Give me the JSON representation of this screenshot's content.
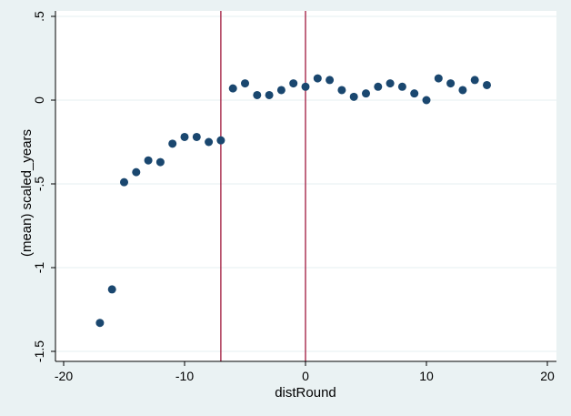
{
  "chart_data": {
    "type": "scatter",
    "xlabel": "distRound",
    "ylabel": "(mean) scaled_years",
    "xlim": [
      -20,
      20
    ],
    "ylim": [
      -1.5,
      0.5
    ],
    "xticks": [
      -20,
      -10,
      0,
      10,
      20
    ],
    "xtick_labels": [
      "-20",
      "-10",
      "0",
      "10",
      "20"
    ],
    "yticks": [
      0.5,
      0,
      -0.5,
      -1,
      -1.5
    ],
    "ytick_labels": [
      ".5",
      "0",
      "-.5",
      "-1",
      "-1.5"
    ],
    "grid": true,
    "vlines": [
      -7,
      0
    ],
    "colors": {
      "background": "#eaf2f3",
      "plot_area": "#ffffff",
      "grid": "#eaf2f3",
      "marker": "#1a476f",
      "vline": "#a0183d",
      "axis": "#000000"
    },
    "points": [
      {
        "x": -17,
        "y": -1.33
      },
      {
        "x": -16,
        "y": -1.13
      },
      {
        "x": -15,
        "y": -0.49
      },
      {
        "x": -14,
        "y": -0.43
      },
      {
        "x": -13,
        "y": -0.36
      },
      {
        "x": -12,
        "y": -0.37
      },
      {
        "x": -11,
        "y": -0.26
      },
      {
        "x": -10,
        "y": -0.22
      },
      {
        "x": -9,
        "y": -0.22
      },
      {
        "x": -8,
        "y": -0.25
      },
      {
        "x": -7,
        "y": -0.24
      },
      {
        "x": -6,
        "y": 0.07
      },
      {
        "x": -5,
        "y": 0.1
      },
      {
        "x": -4,
        "y": 0.03
      },
      {
        "x": -3,
        "y": 0.03
      },
      {
        "x": -2,
        "y": 0.06
      },
      {
        "x": -1,
        "y": 0.1
      },
      {
        "x": 0,
        "y": 0.08
      },
      {
        "x": 1,
        "y": 0.13
      },
      {
        "x": 2,
        "y": 0.12
      },
      {
        "x": 3,
        "y": 0.06
      },
      {
        "x": 4,
        "y": 0.02
      },
      {
        "x": 5,
        "y": 0.04
      },
      {
        "x": 6,
        "y": 0.08
      },
      {
        "x": 7,
        "y": 0.1
      },
      {
        "x": 8,
        "y": 0.08
      },
      {
        "x": 9,
        "y": 0.04
      },
      {
        "x": 10,
        "y": 0.0
      },
      {
        "x": 11,
        "y": 0.13
      },
      {
        "x": 12,
        "y": 0.1
      },
      {
        "x": 13,
        "y": 0.06
      },
      {
        "x": 14,
        "y": 0.12
      },
      {
        "x": 15,
        "y": 0.09
      }
    ]
  }
}
